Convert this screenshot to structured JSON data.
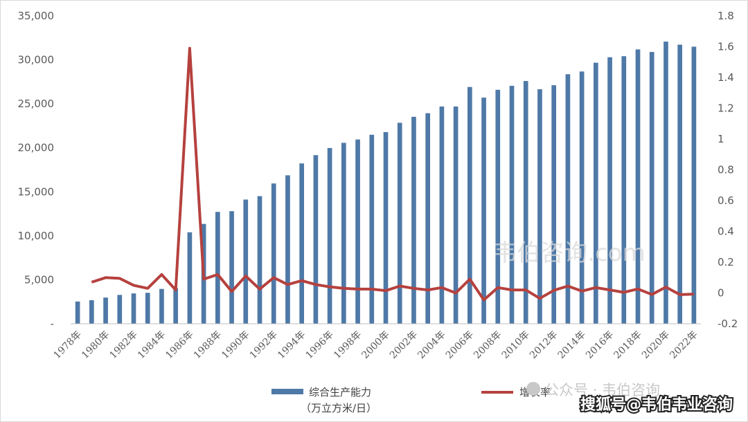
{
  "chart_data": {
    "type": "bar",
    "categories": [
      "1978年",
      "1979年",
      "1980年",
      "1981年",
      "1982年",
      "1983年",
      "1984年",
      "1985年",
      "1986年",
      "1987年",
      "1988年",
      "1989年",
      "1990年",
      "1991年",
      "1992年",
      "1993年",
      "1994年",
      "1995年",
      "1996年",
      "1997年",
      "1998年",
      "1999年",
      "2000年",
      "2001年",
      "2002年",
      "2003年",
      "2004年",
      "2005年",
      "2006年",
      "2007年",
      "2008年",
      "2009年",
      "2010年",
      "2011年",
      "2012年",
      "2013年",
      "2014年",
      "2015年",
      "2016年",
      "2017年",
      "2018年",
      "2019年",
      "2020年",
      "2021年",
      "2022年"
    ],
    "x_tick_labels": [
      "1978年",
      "1980年",
      "1982年",
      "1984年",
      "1986年",
      "1988年",
      "1990年",
      "1992年",
      "1994年",
      "1996年",
      "1998年",
      "2000年",
      "2002年",
      "2004年",
      "2006年",
      "2008年",
      "2010年",
      "2012年",
      "2014年",
      "2016年",
      "2018年",
      "2020年",
      "2022年"
    ],
    "series": [
      {
        "name": "综合生产能力",
        "name_line2": "（万立方米/日）",
        "type": "bar",
        "axis": "left",
        "color": "#4e79a7",
        "values": [
          2530,
          2680,
          2980,
          3280,
          3450,
          3520,
          3960,
          4050,
          10400,
          11350,
          12720,
          12800,
          14120,
          14510,
          15950,
          16880,
          18230,
          19170,
          19980,
          20570,
          20950,
          21490,
          21790,
          22850,
          23530,
          23940,
          24700,
          24700,
          26920,
          25710,
          26600,
          27050,
          27600,
          26670,
          27120,
          28370,
          28680,
          29680,
          30300,
          30420,
          31190,
          30900,
          32080,
          31730,
          31500
        ]
      },
      {
        "name": "增长率",
        "type": "line",
        "axis": "right",
        "color": "#b5413e",
        "values": [
          null,
          0.07,
          0.1,
          0.095,
          0.05,
          0.03,
          0.12,
          0.02,
          1.59,
          0.09,
          0.12,
          0.01,
          0.11,
          0.025,
          0.1,
          0.055,
          0.08,
          0.055,
          0.04,
          0.03,
          0.025,
          0.025,
          0.015,
          0.045,
          0.03,
          0.02,
          0.035,
          0.0,
          0.09,
          -0.045,
          0.035,
          0.02,
          0.02,
          -0.035,
          0.017,
          0.045,
          0.012,
          0.035,
          0.02,
          0.004,
          0.026,
          -0.01,
          0.038,
          -0.011,
          -0.007
        ]
      }
    ],
    "y_left": {
      "ylim": [
        0,
        35000
      ],
      "ticks": [
        "-",
        "5,000",
        "10,000",
        "15,000",
        "20,000",
        "25,000",
        "30,000",
        "35,000"
      ]
    },
    "y_right": {
      "ylim": [
        -0.2,
        1.8
      ],
      "ticks": [
        "-0.2",
        "0",
        "0.2",
        "0.4",
        "0.6",
        "0.8",
        "1",
        "1.2",
        "1.4",
        "1.6",
        "1.8"
      ]
    },
    "grid": false,
    "legend": "bottom"
  },
  "watermarks": {
    "center": "韦伯咨询.com",
    "bottom_account": "公众号 · 韦伯咨询",
    "bottom_source": "搜狐号@韦伯韦业咨询"
  }
}
